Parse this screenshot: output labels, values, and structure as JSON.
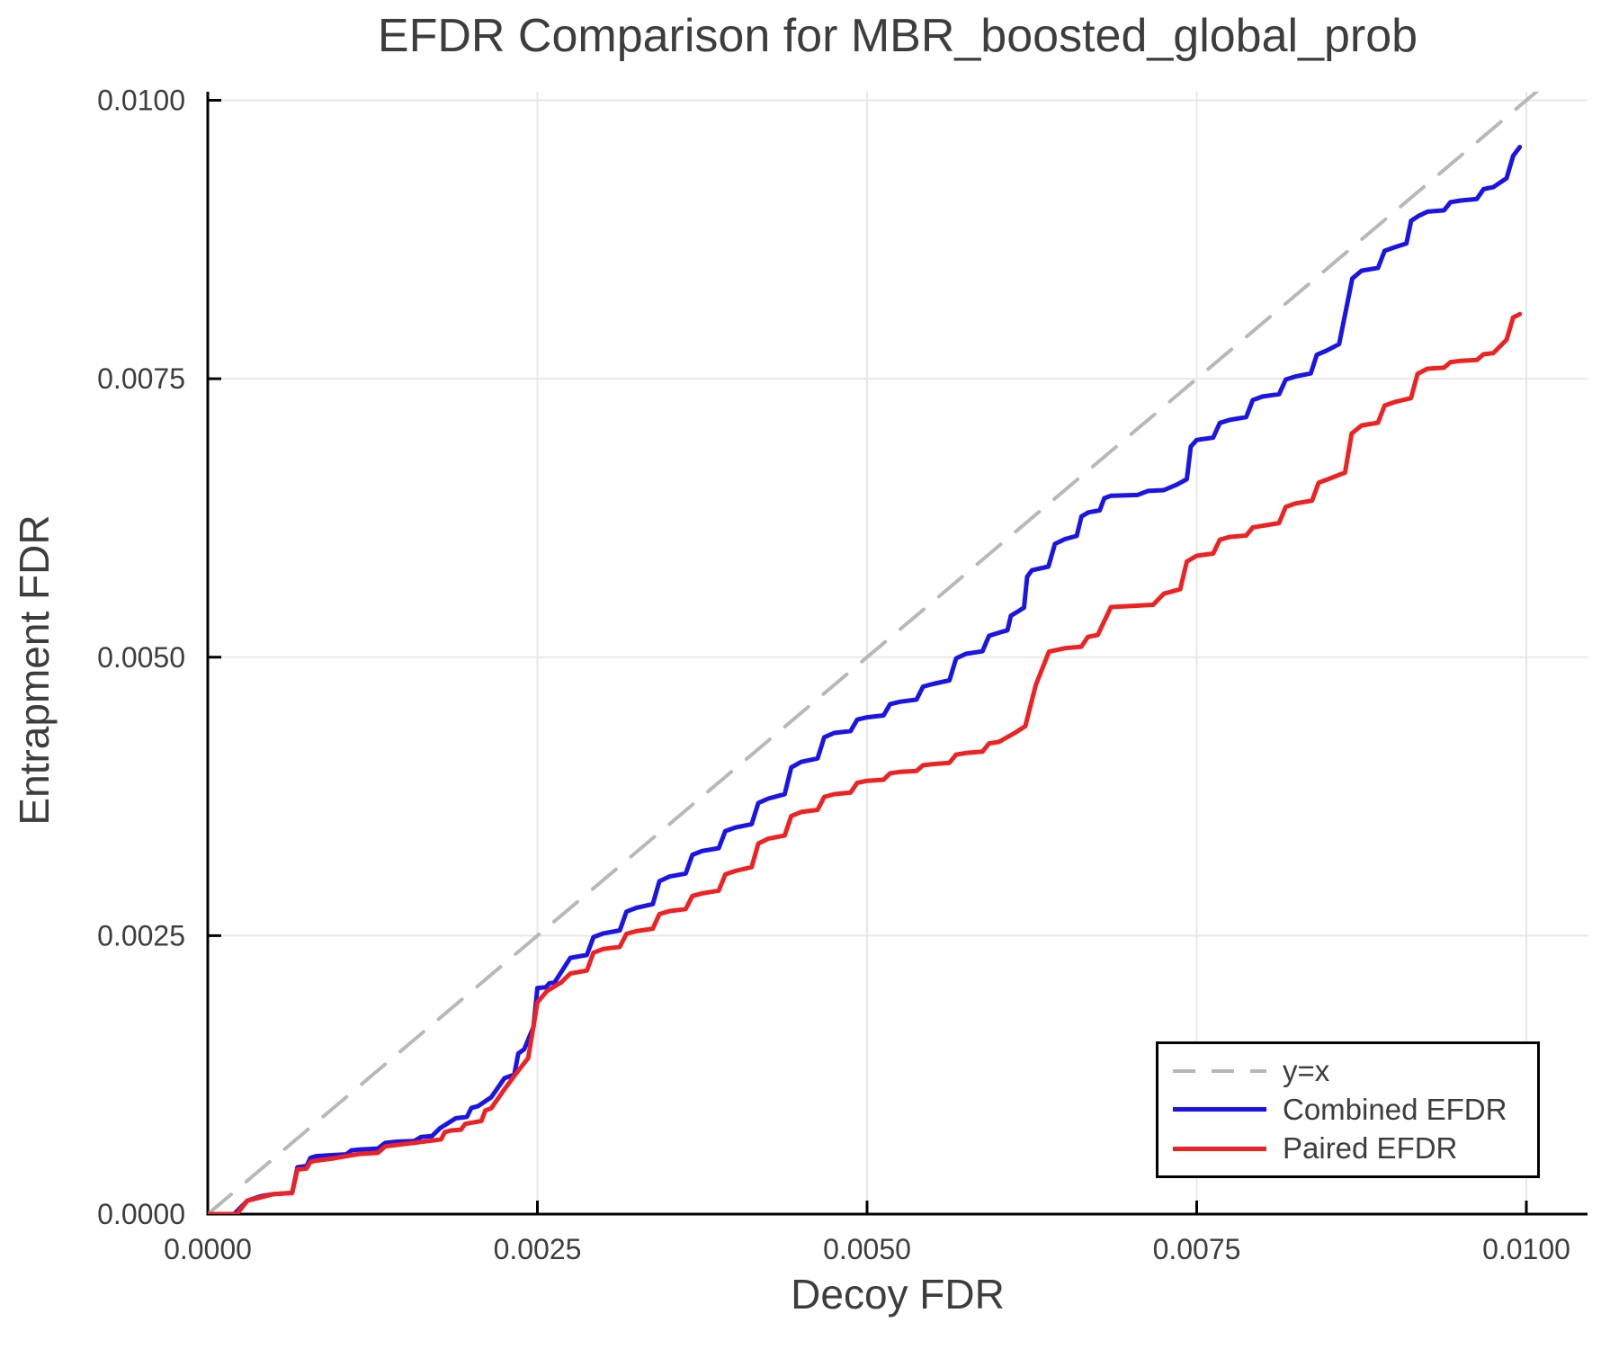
{
  "figure": {
    "background": "#ffffff"
  },
  "chart_data": {
    "type": "line",
    "title": "EFDR Comparison for MBR_boosted_global_prob",
    "xlabel": "Decoy FDR",
    "ylabel": "Entrapment FDR",
    "xlim": [
      0,
      0.01046
    ],
    "ylim": [
      0,
      0.01008
    ],
    "grid": true,
    "grid_color": "#e8e8e8",
    "axis_color": "#000000",
    "text_color": "#3d3d3d",
    "x_ticks": {
      "values": [
        0,
        0.0025,
        0.005,
        0.0075,
        0.01
      ],
      "labels": [
        "0.0000",
        "0.0025",
        "0.0050",
        "0.0075",
        "0.0100"
      ]
    },
    "y_ticks": {
      "values": [
        0,
        0.0025,
        0.005,
        0.0075,
        0.01
      ],
      "labels": [
        "0.0000",
        "0.0025",
        "0.0050",
        "0.0075",
        "0.0100"
      ]
    },
    "legend": {
      "position": "lower right",
      "entries": [
        {
          "label": "y=x",
          "color": "#b8b8b8",
          "dashed": true
        },
        {
          "label": "Combined EFDR",
          "color": "#1a15e6",
          "dashed": false
        },
        {
          "label": "Paired EFDR",
          "color": "#ee2222",
          "dashed": false
        }
      ]
    },
    "series": [
      {
        "name": "y=x",
        "color": "#b8b8b8",
        "dashed": true,
        "steppy": false,
        "width": 4,
        "points": [
          [
            0,
            0
          ],
          [
            0.0101,
            0.0101
          ]
        ]
      },
      {
        "name": "Combined EFDR",
        "color": "#1a15e6",
        "dashed": false,
        "steppy": true,
        "width": 5,
        "points": [
          [
            0,
            0
          ],
          [
            0.0002,
            0
          ],
          [
            0.0003,
            0.00012
          ],
          [
            0.0004,
            0.00016
          ],
          [
            0.0005,
            0.00018
          ],
          [
            0.00064,
            0.00019
          ],
          [
            0.00068,
            0.00042
          ],
          [
            0.00082,
            0.00052
          ],
          [
            0.00095,
            0.00053
          ],
          [
            0.00115,
            0.00058
          ],
          [
            0.00143,
            0.00065
          ],
          [
            0.0017,
            0.0007
          ],
          [
            0.00176,
            0.00077
          ],
          [
            0.00188,
            0.00086
          ],
          [
            0.00205,
            0.00097
          ],
          [
            0.00215,
            0.00105
          ],
          [
            0.00225,
            0.00122
          ],
          [
            0.0024,
            0.00148
          ],
          [
            0.00247,
            0.00168
          ],
          [
            0.0025,
            0.00203
          ],
          [
            0.00263,
            0.00208
          ],
          [
            0.00275,
            0.0023
          ],
          [
            0.003,
            0.00252
          ],
          [
            0.00325,
            0.00275
          ],
          [
            0.0035,
            0.00303
          ],
          [
            0.00375,
            0.00326
          ],
          [
            0.004,
            0.00347
          ],
          [
            0.00425,
            0.00373
          ],
          [
            0.0045,
            0.00406
          ],
          [
            0.00475,
            0.00432
          ],
          [
            0.005,
            0.00446
          ],
          [
            0.00525,
            0.0046
          ],
          [
            0.0055,
            0.00476
          ],
          [
            0.00575,
            0.00503
          ],
          [
            0.006,
            0.00522
          ],
          [
            0.00613,
            0.0054
          ],
          [
            0.00625,
            0.00578
          ],
          [
            0.0065,
            0.00606
          ],
          [
            0.00668,
            0.0063
          ],
          [
            0.00685,
            0.00645
          ],
          [
            0.00725,
            0.0065
          ],
          [
            0.00735,
            0.00655
          ],
          [
            0.0075,
            0.00695
          ],
          [
            0.00775,
            0.00713
          ],
          [
            0.008,
            0.00734
          ],
          [
            0.00825,
            0.00752
          ],
          [
            0.00848,
            0.00775
          ],
          [
            0.00858,
            0.00781
          ],
          [
            0.00868,
            0.0084
          ],
          [
            0.00875,
            0.00847
          ],
          [
            0.009,
            0.00868
          ],
          [
            0.00918,
            0.00896
          ],
          [
            0.00925,
            0.009
          ],
          [
            0.0095,
            0.0091
          ],
          [
            0.00975,
            0.00922
          ],
          [
            0.00985,
            0.0093
          ],
          [
            0.0099,
            0.0095
          ],
          [
            0.00995,
            0.00958
          ]
        ]
      },
      {
        "name": "Paired EFDR",
        "color": "#ee2222",
        "dashed": false,
        "steppy": true,
        "width": 5,
        "points": [
          [
            0,
            0
          ],
          [
            0.00022,
            0
          ],
          [
            0.0003,
            0.00012
          ],
          [
            0.0004,
            0.00015
          ],
          [
            0.0005,
            0.00018
          ],
          [
            0.00064,
            0.00019
          ],
          [
            0.00068,
            0.0004
          ],
          [
            0.00082,
            0.00048
          ],
          [
            0.00095,
            0.0005
          ],
          [
            0.00115,
            0.00054
          ],
          [
            0.00143,
            0.00062
          ],
          [
            0.0017,
            0.00066
          ],
          [
            0.00184,
            0.00075
          ],
          [
            0.002,
            0.00082
          ],
          [
            0.00215,
            0.00095
          ],
          [
            0.00225,
            0.00112
          ],
          [
            0.00235,
            0.00128
          ],
          [
            0.00243,
            0.0014
          ],
          [
            0.0025,
            0.0019
          ],
          [
            0.00257,
            0.002
          ],
          [
            0.00268,
            0.00208
          ],
          [
            0.00275,
            0.00216
          ],
          [
            0.003,
            0.00238
          ],
          [
            0.00325,
            0.00254
          ],
          [
            0.0035,
            0.00272
          ],
          [
            0.00375,
            0.00288
          ],
          [
            0.004,
            0.00308
          ],
          [
            0.00425,
            0.00337
          ],
          [
            0.0045,
            0.00361
          ],
          [
            0.00475,
            0.00377
          ],
          [
            0.005,
            0.00389
          ],
          [
            0.00525,
            0.00397
          ],
          [
            0.0055,
            0.00404
          ],
          [
            0.00575,
            0.00414
          ],
          [
            0.006,
            0.00424
          ],
          [
            0.00612,
            0.00432
          ],
          [
            0.0062,
            0.00438
          ],
          [
            0.00628,
            0.00475
          ],
          [
            0.00638,
            0.00505
          ],
          [
            0.0065,
            0.00508
          ],
          [
            0.00675,
            0.0052
          ],
          [
            0.00685,
            0.00545
          ],
          [
            0.00717,
            0.00547
          ],
          [
            0.00725,
            0.00557
          ],
          [
            0.0075,
            0.00591
          ],
          [
            0.00775,
            0.00608
          ],
          [
            0.008,
            0.00618
          ],
          [
            0.00825,
            0.00638
          ],
          [
            0.0085,
            0.0066
          ],
          [
            0.00875,
            0.00708
          ],
          [
            0.009,
            0.00729
          ],
          [
            0.00925,
            0.00759
          ],
          [
            0.0095,
            0.00766
          ],
          [
            0.00975,
            0.00773
          ],
          [
            0.00985,
            0.00785
          ],
          [
            0.0099,
            0.00805
          ],
          [
            0.00995,
            0.00808
          ]
        ]
      }
    ]
  }
}
